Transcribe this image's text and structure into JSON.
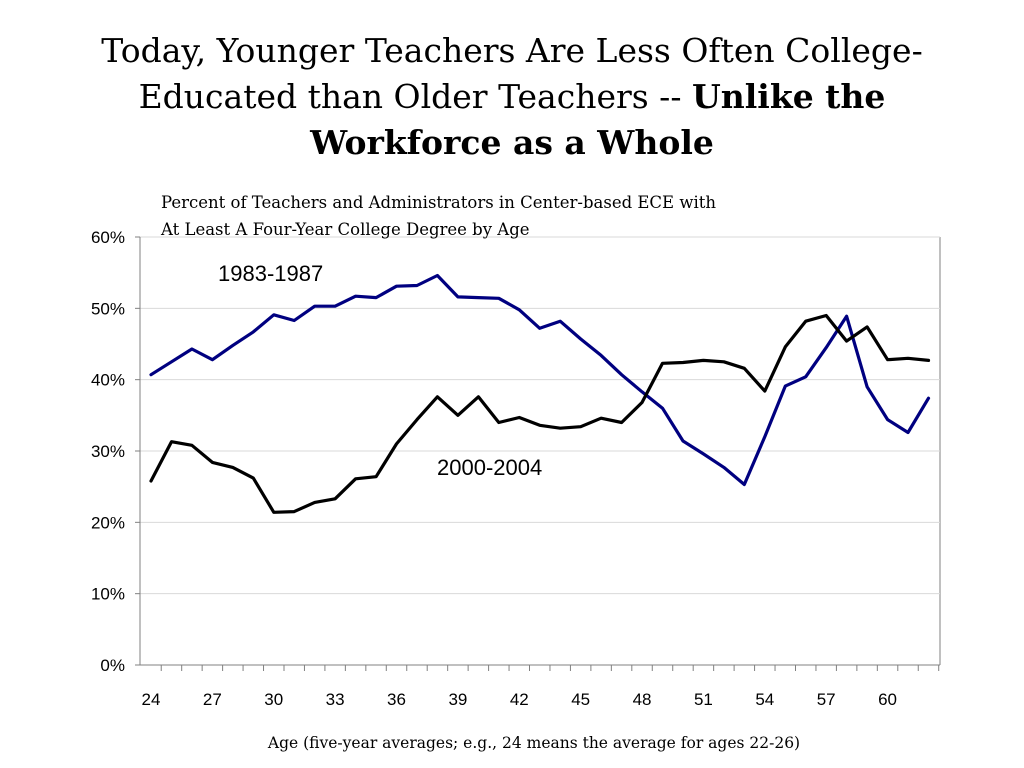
{
  "title": {
    "plain": "Today, Younger Teachers Are Less Often College-Educated than Older Teachers -- ",
    "bold": "Unlike the Workforce as a Whole"
  },
  "chart_data": {
    "type": "line",
    "subtitle_lines": [
      "Percent of Teachers and Administrators in Center-based ECE with",
      "At Least A Four-Year College Degree by Age"
    ],
    "xlabel": "Age (five-year averages; e.g., 24 means the average for ages 22-26)",
    "ylabel": "",
    "ylim": [
      0,
      60
    ],
    "xlim": [
      24,
      62
    ],
    "y_ticks": [
      "0%",
      "10%",
      "20%",
      "30%",
      "40%",
      "50%",
      "60%"
    ],
    "x_ticks": [
      "24",
      "27",
      "30",
      "33",
      "36",
      "39",
      "42",
      "45",
      "48",
      "51",
      "54",
      "57",
      "60"
    ],
    "grid": true,
    "x": [
      24,
      25,
      26,
      27,
      28,
      29,
      30,
      31,
      32,
      33,
      34,
      35,
      36,
      37,
      38,
      39,
      40,
      41,
      42,
      43,
      44,
      45,
      46,
      47,
      48,
      49,
      50,
      51,
      52,
      53,
      54,
      55,
      56,
      57,
      58,
      59,
      60,
      61,
      62
    ],
    "series": [
      {
        "name": "1983-1987",
        "color": "#000080",
        "values": [
          40.7,
          42.5,
          44.3,
          42.8,
          44.8,
          46.7,
          49.1,
          48.3,
          50.3,
          50.3,
          51.7,
          51.5,
          53.1,
          53.2,
          54.6,
          51.6,
          51.5,
          51.4,
          49.8,
          47.2,
          48.2,
          45.7,
          43.4,
          40.7,
          38.3,
          36.0,
          31.4,
          29.6,
          27.7,
          25.3,
          32.0,
          39.1,
          40.4,
          44.5,
          48.9,
          39.0,
          34.4,
          32.6,
          37.4
        ]
      },
      {
        "name": "2000-2004",
        "color": "#000000",
        "values": [
          25.8,
          31.3,
          30.8,
          28.4,
          27.7,
          26.2,
          21.4,
          21.5,
          22.8,
          23.3,
          26.1,
          26.4,
          31.0,
          34.4,
          37.6,
          35.0,
          37.6,
          34.0,
          34.7,
          33.6,
          33.2,
          33.4,
          34.6,
          34.0,
          36.8,
          42.3,
          42.4,
          42.7,
          42.5,
          41.6,
          38.4,
          44.6,
          48.2,
          49.0,
          45.4,
          47.4,
          42.8,
          43.0,
          42.7
        ]
      }
    ]
  }
}
